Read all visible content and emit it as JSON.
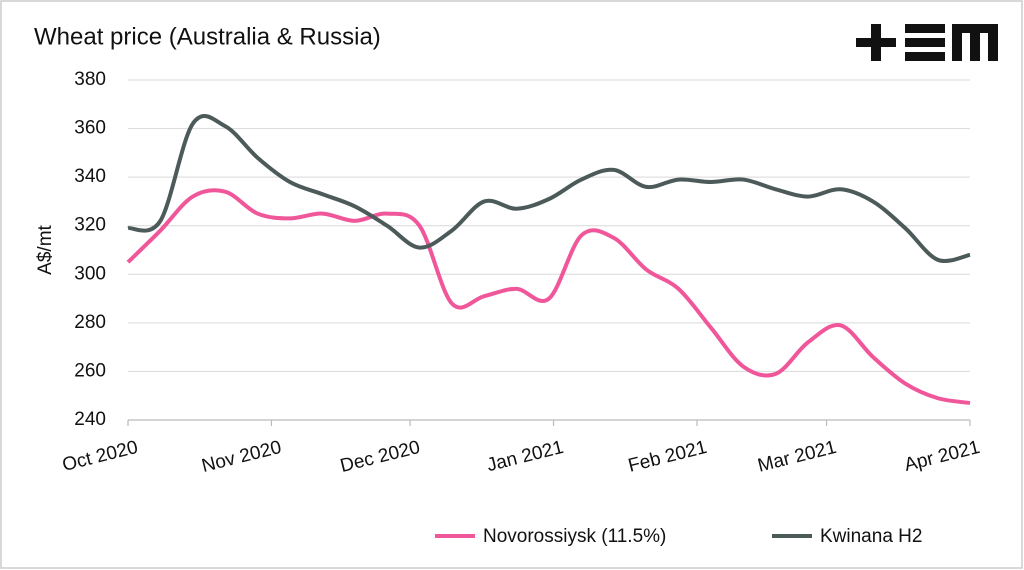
{
  "chart_data": {
    "type": "line",
    "title": "Wheat price (Australia & Russia)",
    "y_label": "A$/mt",
    "x": [
      0,
      1,
      2,
      3,
      4,
      5,
      6,
      7,
      8,
      9,
      10,
      11,
      12,
      13,
      14,
      15,
      16,
      17,
      18,
      19,
      20,
      21,
      22,
      23,
      24,
      25,
      26
    ],
    "xlim": [
      0,
      26
    ],
    "xticks": [
      {
        "value": 0,
        "label": "Oct 2020"
      },
      {
        "value": 4.43,
        "label": "Nov 2020"
      },
      {
        "value": 8.71,
        "label": "Dec 2020"
      },
      {
        "value": 13.14,
        "label": "Jan 2021"
      },
      {
        "value": 17.57,
        "label": "Feb 2021"
      },
      {
        "value": 21.57,
        "label": "Mar 2021"
      },
      {
        "value": 26,
        "label": "Apr 2021"
      }
    ],
    "ylim": [
      240,
      380
    ],
    "yticks": [
      240,
      260,
      280,
      300,
      320,
      340,
      360,
      380
    ],
    "grid": true,
    "legend": "bottom",
    "series": [
      {
        "name": "Novorossiysk (11.5%)",
        "color": "#f0579a",
        "values": [
          305,
          318,
          332,
          334,
          325,
          323,
          325,
          322,
          325,
          320,
          288,
          291,
          294,
          290,
          316,
          315,
          302,
          294,
          278,
          262,
          259,
          272,
          279,
          266,
          255,
          249,
          247
        ]
      },
      {
        "name": "Kwinana H2",
        "color": "#4d5a5a",
        "values": [
          319,
          322,
          362,
          361,
          348,
          338,
          333,
          328,
          320,
          311,
          318,
          330,
          327,
          331,
          339,
          343,
          336,
          339,
          338,
          339,
          335,
          332,
          335,
          330,
          319,
          306,
          308
        ]
      }
    ]
  }
}
